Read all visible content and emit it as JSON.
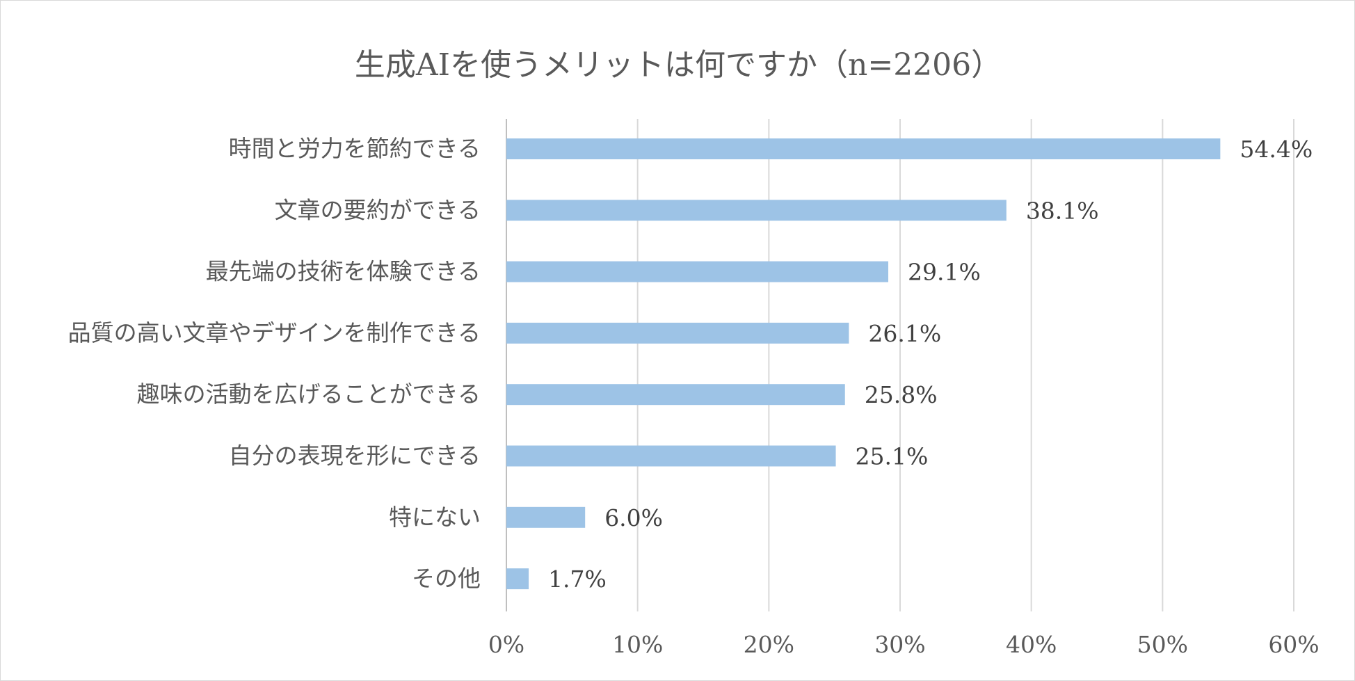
{
  "chart_data": {
    "type": "bar",
    "orientation": "horizontal",
    "title": "生成AIを使うメリットは何ですか（n=2206）",
    "categories": [
      "時間と労力を節約できる",
      "文章の要約ができる",
      "最先端の技術を体験できる",
      "品質の高い文章やデザインを制作できる",
      "趣味の活動を広げることができる",
      "自分の表現を形にできる",
      "特にない",
      "その他"
    ],
    "values": [
      54.4,
      38.1,
      29.1,
      26.1,
      25.8,
      25.1,
      6.0,
      1.7
    ],
    "data_labels": [
      "54.4%",
      "38.1%",
      "29.1%",
      "26.1%",
      "25.8%",
      "25.1%",
      "6.0%",
      "1.7%"
    ],
    "xlim": [
      0,
      60
    ],
    "xticks": [
      0,
      10,
      20,
      30,
      40,
      50,
      60
    ],
    "xtick_labels": [
      "0%",
      "10%",
      "20%",
      "30%",
      "40%",
      "50%",
      "60%"
    ],
    "grid": "vertical",
    "legend": "none",
    "colors": {
      "bar": "#9dc3e6",
      "grid": "#d9d9d9",
      "axis": "#bfbfbf",
      "text": "#595959",
      "label_text": "#404040"
    }
  }
}
